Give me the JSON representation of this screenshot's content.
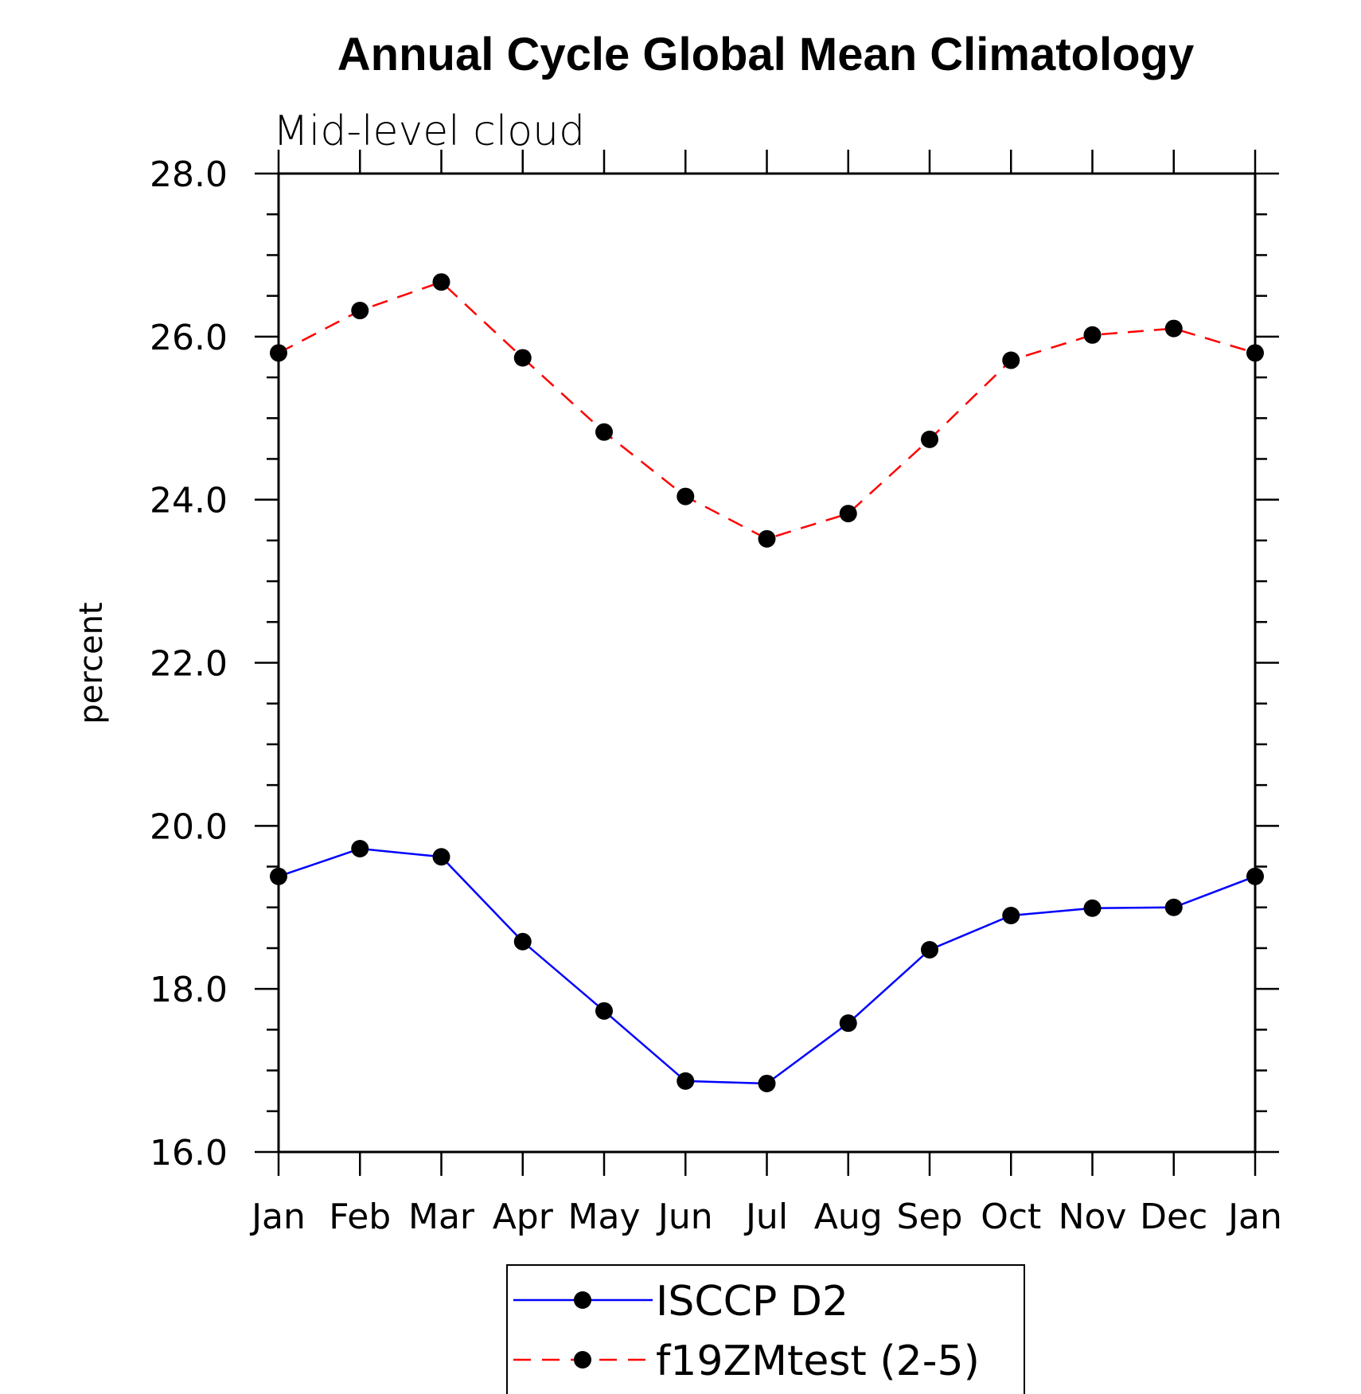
{
  "chart_data": {
    "type": "line",
    "title": "Annual Cycle Global Mean Climatology",
    "subtitle": "Mid-level cloud",
    "ylabel": "percent",
    "xlabel": "",
    "categories": [
      "Jan",
      "Feb",
      "Mar",
      "Apr",
      "May",
      "Jun",
      "Jul",
      "Aug",
      "Sep",
      "Oct",
      "Nov",
      "Dec",
      "Jan"
    ],
    "ylim": [
      16.0,
      28.0
    ],
    "yticks": [
      "16.0",
      "18.0",
      "20.0",
      "22.0",
      "24.0",
      "26.0",
      "28.0"
    ],
    "grid": false,
    "legend_position": "bottom",
    "series": [
      {
        "name": "ISCCP D2",
        "color": "#0000ff",
        "line_style": "solid",
        "marker": "filled-circle",
        "values": [
          19.38,
          19.72,
          19.62,
          18.58,
          17.73,
          16.87,
          16.84,
          17.58,
          18.48,
          18.9,
          18.99,
          19.0,
          19.38
        ]
      },
      {
        "name": "f19ZMtest (2-5)",
        "color": "#ff0000",
        "line_style": "dashed",
        "marker": "filled-circle",
        "values": [
          25.8,
          26.32,
          26.67,
          25.74,
          24.83,
          24.04,
          23.52,
          23.83,
          24.74,
          25.71,
          26.02,
          26.1,
          25.8
        ]
      }
    ]
  }
}
